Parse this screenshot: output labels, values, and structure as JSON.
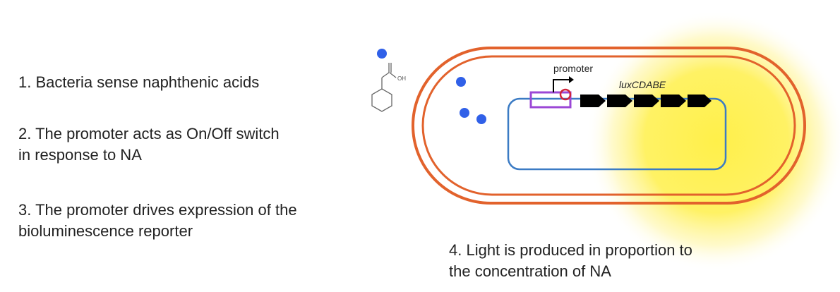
{
  "steps": [
    {
      "text": "1. Bacteria sense naphthenic acids"
    },
    {
      "text": "2. The promoter acts as On/Off switch\nin response to NA"
    },
    {
      "text": "3. The promoter drives expression of the\nbioluminescence reporter"
    },
    {
      "text": "4.  Light is produced in proportion to\nthe concentration of NA"
    }
  ],
  "diagram": {
    "promoter_label": "promoter",
    "operon_label": "luxCDABE",
    "molecule_label": "OH",
    "colors": {
      "membrane": "#e2622c",
      "plasmid": "#3b7bc4",
      "na_dots": "#3060e8",
      "promoter_box": "#9b47d6",
      "operator": "#d0243a",
      "genes": "#000000",
      "glow": "#fff04a"
    }
  }
}
